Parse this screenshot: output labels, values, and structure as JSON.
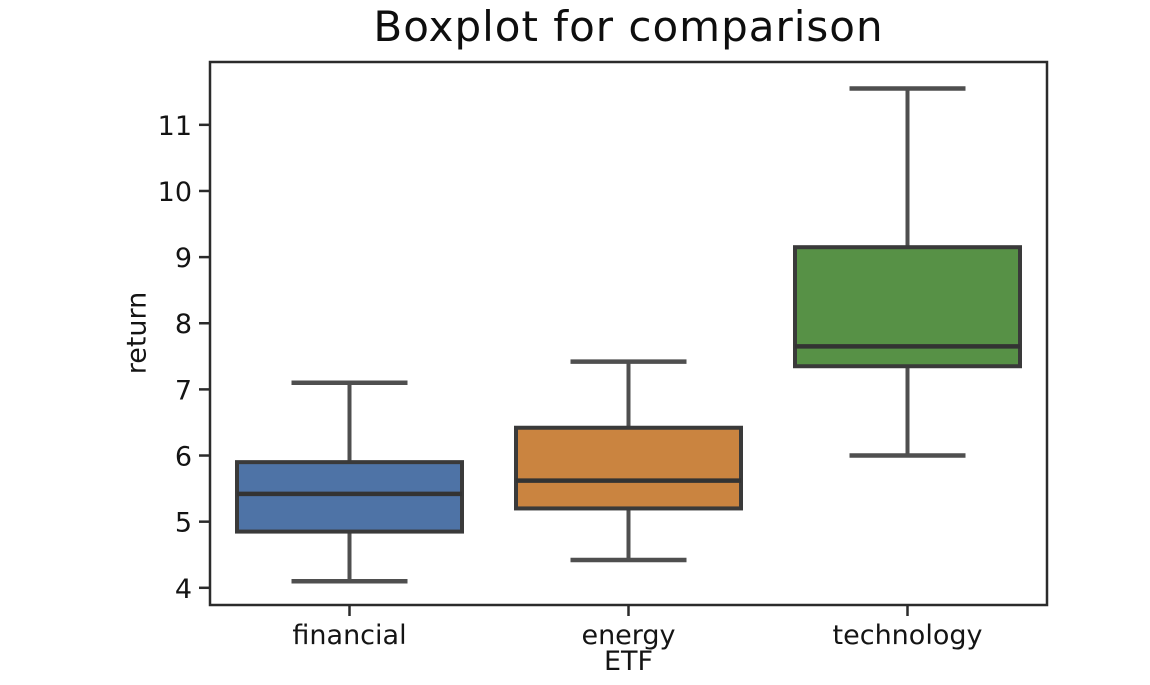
{
  "chart_data": {
    "type": "boxplot",
    "title": "Boxplot for comparison",
    "xlabel": "ETF",
    "ylabel": "return",
    "categories": [
      "financial",
      "energy",
      "technology"
    ],
    "yticks": [
      4,
      5,
      6,
      7,
      8,
      9,
      10,
      11
    ],
    "ylim": [
      3.74,
      11.95
    ],
    "grid": false,
    "legend": "none",
    "series": [
      {
        "name": "financial",
        "whisker_low": 4.1,
        "q1": 4.85,
        "median": 5.42,
        "q3": 5.9,
        "whisker_high": 7.1,
        "fliers": [],
        "color": "#4E73A6"
      },
      {
        "name": "energy",
        "whisker_low": 4.42,
        "q1": 5.2,
        "median": 5.62,
        "q3": 6.42,
        "whisker_high": 7.42,
        "fliers": [],
        "color": "#CA8440"
      },
      {
        "name": "technology",
        "whisker_low": 6.0,
        "q1": 7.35,
        "median": 7.65,
        "q3": 9.15,
        "whisker_high": 11.55,
        "fliers": [],
        "color": "#579146"
      }
    ],
    "colors": {
      "box_edge": "#3A3A3A",
      "median_line": "#333333",
      "whisker": "#4F4F4F",
      "spine": "#2B2B2B",
      "tick_text": "#141414",
      "plot_background": "#ffffff"
    }
  }
}
